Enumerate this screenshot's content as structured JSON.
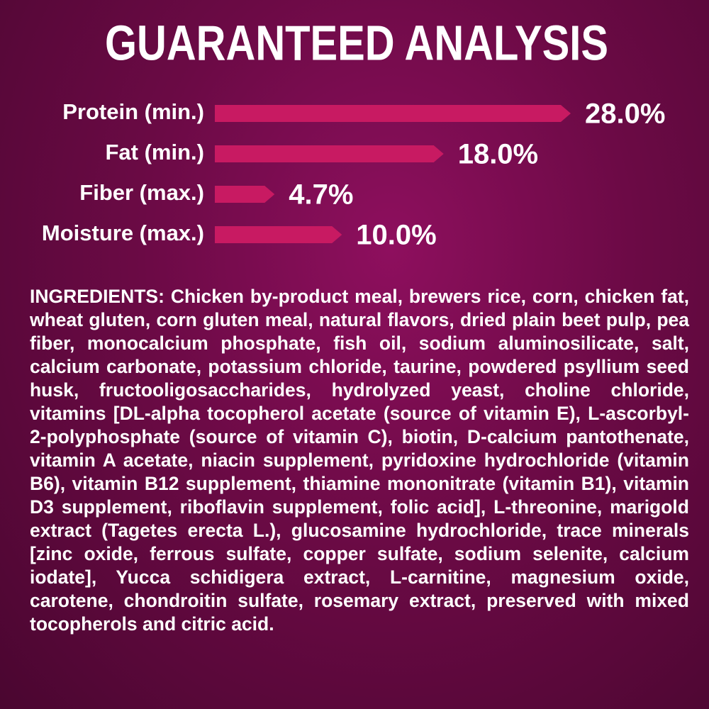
{
  "chart_data": {
    "type": "bar",
    "title": "GUARANTEED ANALYSIS",
    "categories": [
      "Protein (min.)",
      "Fat (min.)",
      "Fiber (max.)",
      "Moisture (max.)"
    ],
    "values": [
      28.0,
      18.0,
      4.7,
      10.0
    ],
    "value_labels": [
      "28.0%",
      "18.0%",
      "4.7%",
      "10.0%"
    ],
    "color": "#c81a62"
  },
  "ingredients": "INGREDIENTS: Chicken by-product meal, brewers rice, corn, chicken fat, wheat gluten, corn gluten meal, natural flavors, dried plain beet pulp, pea fiber, monocalcium phosphate, fish oil, sodium aluminosilicate, salt, calcium carbonate, potassium chloride, taurine, powdered psyllium seed husk, fructooligosaccharides, hydrolyzed yeast, choline chloride, vitamins [DL-alpha tocopherol acetate (source of vitamin E), L-ascorbyl-2-polyphosphate (source of vitamin C), biotin, D-calcium pantothenate, vitamin A acetate, niacin supplement, pyridoxine hydrochloride (vitamin B6), vitamin B12 supplement, thiamine mononitrate (vitamin B1), vitamin D3 supplement, riboflavin supplement, folic acid], L-threonine, marigold extract (Tagetes erecta L.), glucosamine hydrochloride, trace minerals [zinc oxide, ferrous sulfate, copper sulfate, sodium selenite, calcium iodate], Yucca schidigera extract, L-carnitine, magnesium oxide, carotene, chondroitin sulfate, rosemary extract, preserved with mixed tocopherols and citric acid."
}
